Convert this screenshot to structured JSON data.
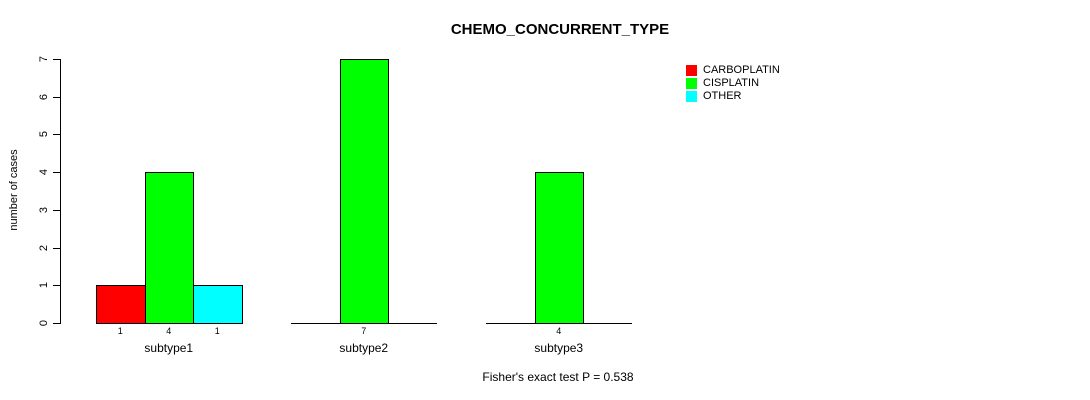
{
  "chart_data": {
    "type": "bar",
    "title": "CHEMO_CONCURRENT_TYPE",
    "ylabel": "number of cases",
    "xlabel": "",
    "ylim": [
      0,
      7
    ],
    "yticks": [
      0,
      1,
      2,
      3,
      4,
      5,
      6,
      7
    ],
    "categories": [
      "subtype1",
      "subtype2",
      "subtype3"
    ],
    "series": [
      {
        "name": "CARBOPLATIN",
        "color": "#ff0000",
        "values": [
          1,
          0,
          0
        ]
      },
      {
        "name": "CISPLATIN",
        "color": "#00ff00",
        "values": [
          4,
          7,
          4
        ]
      },
      {
        "name": "OTHER",
        "color": "#00ffff",
        "values": [
          1,
          0,
          0
        ]
      }
    ],
    "bar_value_labels": true,
    "grid": false,
    "legend_position": "top-right",
    "annotation": "Fisher's exact test P = 0.538",
    "colors": {
      "background": "#ffffff",
      "axis": "#000000",
      "text": "#000000"
    }
  }
}
